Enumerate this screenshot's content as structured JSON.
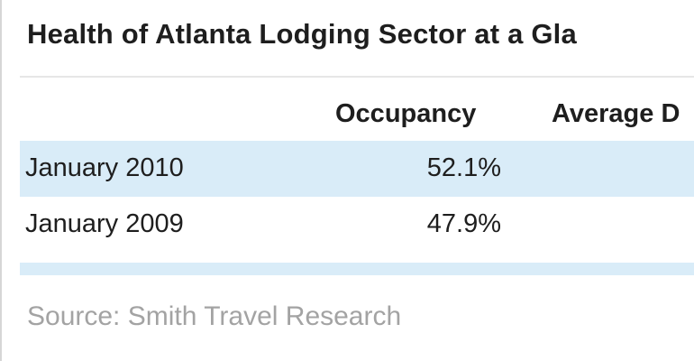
{
  "chart_data": {
    "type": "table",
    "title": "Health of Atlanta Lodging Sector at a Gla",
    "columns": [
      "Occupancy",
      "Average D"
    ],
    "rows": [
      {
        "label": "January 2010",
        "occupancy": "52.1%"
      },
      {
        "label": "January 2009",
        "occupancy": "47.9%"
      }
    ],
    "source": "Source: Smith Travel Research"
  },
  "colors": {
    "row_highlight": "#d9ecf8",
    "source_text": "#a3a3a3"
  }
}
